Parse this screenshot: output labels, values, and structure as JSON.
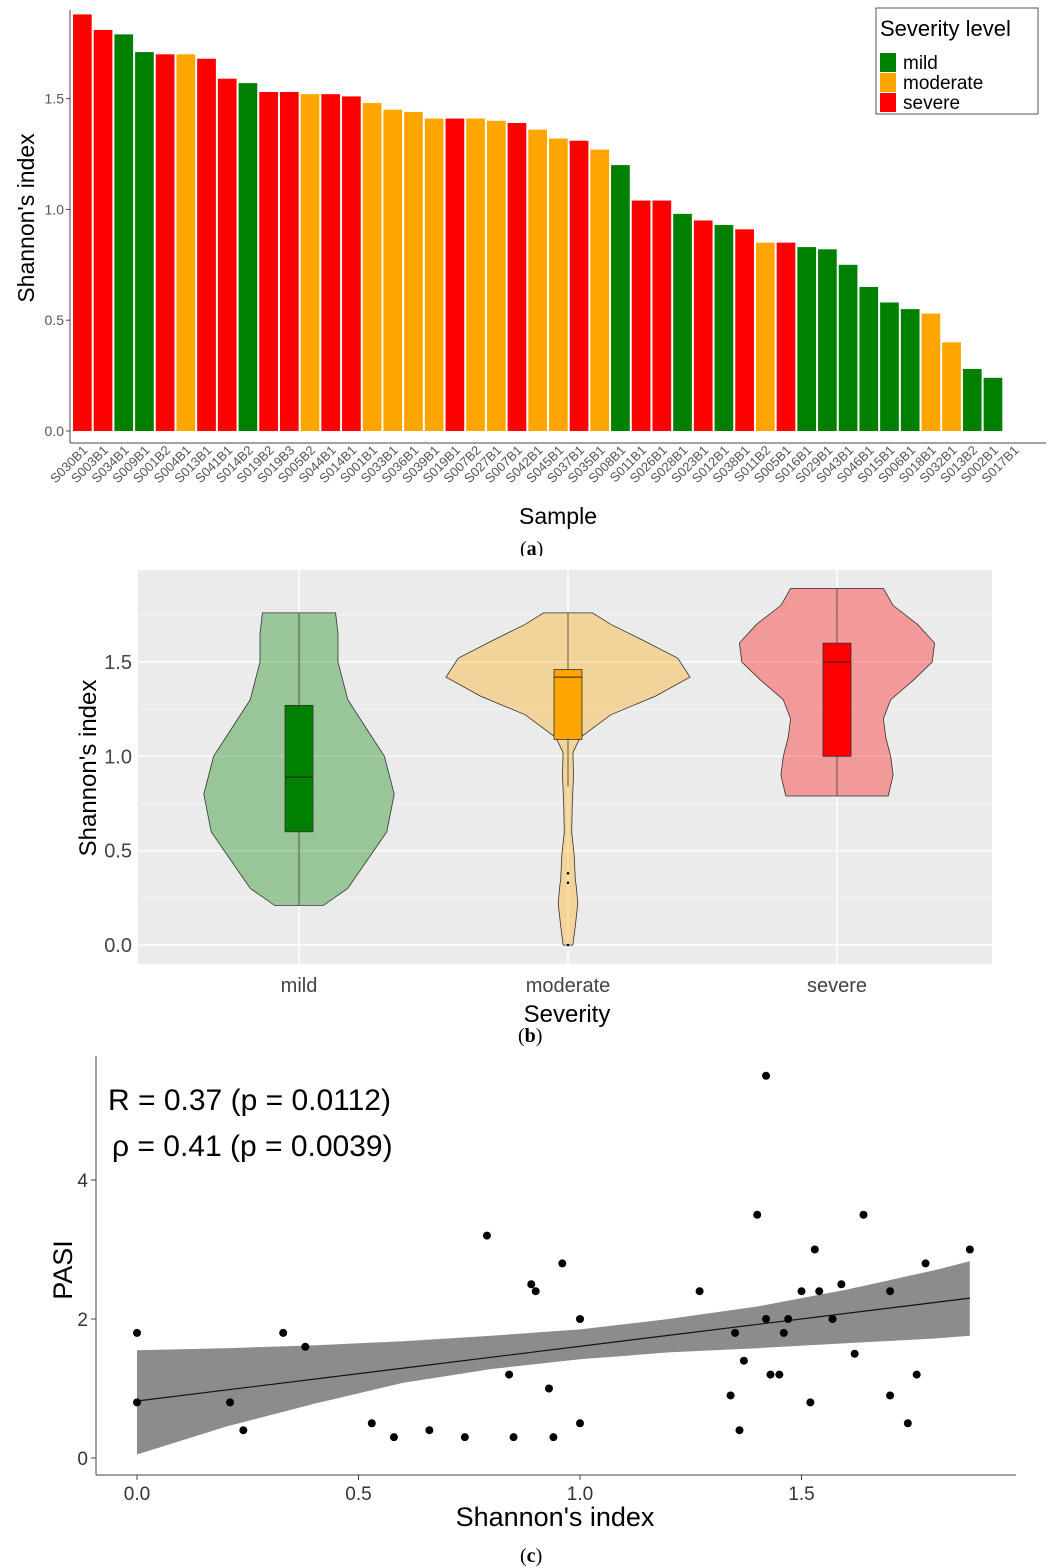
{
  "chart_data": [
    {
      "type": "bar",
      "panel_label": "a",
      "xlabel": "Sample",
      "ylabel": "Shannon's index",
      "ylim": [
        0,
        1.9
      ],
      "yticks": [
        "0.0",
        "0.5",
        "1.0",
        "1.5"
      ],
      "ytick_values": [
        0,
        0.5,
        1.0,
        1.5
      ],
      "legend": {
        "title": "Severity level",
        "position": "top-right",
        "items": [
          {
            "label": "mild",
            "color": "#008000"
          },
          {
            "label": "moderate",
            "color": "#FFA500"
          },
          {
            "label": "severe",
            "color": "#FF0000"
          }
        ]
      },
      "grid": false,
      "categories": [
        "S030B1",
        "S003B1",
        "S034B1",
        "S009B1",
        "S001B2",
        "S004B1",
        "S013B1",
        "S041B1",
        "S014B2",
        "S019B2",
        "S019B3",
        "S005B2",
        "S044B1",
        "S014B1",
        "S001B1",
        "S033B1",
        "S036B1",
        "S039B1",
        "S019B1",
        "S007B2",
        "S027B1",
        "S007B1",
        "S042B1",
        "S045B1",
        "S037B1",
        "S035B1",
        "S008B1",
        "S011B1",
        "S026B1",
        "S028B1",
        "S023B1",
        "S012B1",
        "S038B1",
        "S011B2",
        "S005B1",
        "S016B1",
        "S029B1",
        "S043B1",
        "S046B1",
        "S015B1",
        "S006B1",
        "S018B1",
        "S032B1",
        "S013B2",
        "S002B1",
        "S017B1"
      ],
      "values": [
        1.88,
        1.81,
        1.79,
        1.71,
        1.7,
        1.7,
        1.68,
        1.59,
        1.57,
        1.53,
        1.53,
        1.52,
        1.52,
        1.51,
        1.48,
        1.45,
        1.44,
        1.41,
        1.41,
        1.41,
        1.4,
        1.39,
        1.36,
        1.32,
        1.31,
        1.27,
        1.2,
        1.04,
        1.04,
        0.98,
        0.95,
        0.93,
        0.91,
        0.85,
        0.85,
        0.83,
        0.82,
        0.75,
        0.65,
        0.58,
        0.55,
        0.53,
        0.4,
        0.28,
        0.24,
        0.0
      ],
      "severity": [
        "severe",
        "severe",
        "mild",
        "mild",
        "severe",
        "moderate",
        "severe",
        "severe",
        "mild",
        "severe",
        "severe",
        "moderate",
        "severe",
        "severe",
        "moderate",
        "moderate",
        "moderate",
        "moderate",
        "severe",
        "moderate",
        "moderate",
        "severe",
        "moderate",
        "moderate",
        "severe",
        "moderate",
        "mild",
        "severe",
        "severe",
        "mild",
        "severe",
        "mild",
        "severe",
        "moderate",
        "severe",
        "mild",
        "mild",
        "mild",
        "mild",
        "mild",
        "mild",
        "moderate",
        "moderate",
        "mild",
        "mild",
        "moderate"
      ]
    },
    {
      "type": "violin",
      "panel_label": "b",
      "xlabel": "Severity",
      "ylabel": "Shannon's index",
      "categories": [
        "mild",
        "moderate",
        "severe"
      ],
      "yticks": [
        "0.0",
        "0.5",
        "1.0",
        "1.5"
      ],
      "ytick_values": [
        0,
        0.5,
        1.0,
        1.5
      ],
      "ylim": [
        -0.1,
        2.0
      ],
      "grid": true,
      "series": [
        {
          "category": "mild",
          "color": "#008000",
          "min": 0.21,
          "q1": 0.6,
          "median": 0.89,
          "q3": 1.27,
          "max": 1.76,
          "outliers": [],
          "density": [
            [
              0.21,
              0.2
            ],
            [
              0.3,
              0.4
            ],
            [
              0.45,
              0.56
            ],
            [
              0.6,
              0.72
            ],
            [
              0.8,
              0.78
            ],
            [
              1.0,
              0.7
            ],
            [
              1.15,
              0.55
            ],
            [
              1.3,
              0.4
            ],
            [
              1.5,
              0.32
            ],
            [
              1.65,
              0.32
            ],
            [
              1.76,
              0.3
            ]
          ]
        },
        {
          "category": "moderate",
          "color": "#FFA500",
          "min": 0.84,
          "q1": 1.09,
          "median": 1.42,
          "q3": 1.46,
          "max": 1.76,
          "outliers": [
            0.38,
            0.33,
            0.0
          ],
          "density": [
            [
              0.0,
              0.04
            ],
            [
              0.1,
              0.06
            ],
            [
              0.22,
              0.08
            ],
            [
              0.3,
              0.07
            ],
            [
              0.35,
              0.06
            ],
            [
              0.48,
              0.05
            ],
            [
              0.6,
              0.03
            ],
            [
              0.75,
              0.035
            ],
            [
              0.9,
              0.045
            ],
            [
              1.02,
              0.04
            ],
            [
              1.1,
              0.1
            ],
            [
              1.22,
              0.35
            ],
            [
              1.32,
              0.72
            ],
            [
              1.42,
              1.0
            ],
            [
              1.52,
              0.9
            ],
            [
              1.62,
              0.6
            ],
            [
              1.7,
              0.35
            ],
            [
              1.76,
              0.2
            ]
          ]
        },
        {
          "category": "severe",
          "color": "#FF0000",
          "min": 0.79,
          "q1": 1.0,
          "median": 1.5,
          "q3": 1.6,
          "max": 1.89,
          "outliers": [],
          "density": [
            [
              0.79,
              0.42
            ],
            [
              0.9,
              0.46
            ],
            [
              1.0,
              0.44
            ],
            [
              1.1,
              0.4
            ],
            [
              1.2,
              0.38
            ],
            [
              1.3,
              0.44
            ],
            [
              1.4,
              0.62
            ],
            [
              1.5,
              0.78
            ],
            [
              1.6,
              0.8
            ],
            [
              1.7,
              0.66
            ],
            [
              1.8,
              0.46
            ],
            [
              1.89,
              0.38
            ]
          ]
        }
      ]
    },
    {
      "type": "scatter",
      "panel_label": "c",
      "xlabel": "Shannon's index",
      "ylabel": "PASI",
      "xlim": [
        -0.05,
        1.95
      ],
      "ylim": [
        -0.1,
        5.6
      ],
      "xticks": [
        "0.0",
        "0.5",
        "1.0",
        "1.5"
      ],
      "xtick_values": [
        0,
        0.5,
        1.0,
        1.5
      ],
      "yticks": [
        "0",
        "2",
        "4"
      ],
      "ytick_values": [
        0,
        2,
        4
      ],
      "annotations": [
        "R = 0.37 (p = 0.0112)",
        "ρ = 0.41 (p = 0.0039)"
      ],
      "points": [
        [
          0.0,
          1.8
        ],
        [
          0.0,
          0.8
        ],
        [
          0.21,
          0.8
        ],
        [
          0.24,
          0.4
        ],
        [
          0.33,
          1.8
        ],
        [
          0.38,
          1.6
        ],
        [
          0.53,
          0.5
        ],
        [
          0.58,
          0.3
        ],
        [
          0.66,
          0.4
        ],
        [
          0.74,
          0.3
        ],
        [
          0.79,
          3.2
        ],
        [
          0.84,
          1.2
        ],
        [
          0.85,
          0.3
        ],
        [
          0.89,
          2.5
        ],
        [
          0.9,
          2.4
        ],
        [
          0.93,
          1.0
        ],
        [
          0.94,
          0.3
        ],
        [
          0.96,
          2.8
        ],
        [
          1.0,
          0.5
        ],
        [
          1.0,
          2.0
        ],
        [
          1.27,
          2.4
        ],
        [
          1.34,
          0.9
        ],
        [
          1.35,
          1.8
        ],
        [
          1.36,
          0.4
        ],
        [
          1.37,
          1.4
        ],
        [
          1.4,
          3.5
        ],
        [
          1.42,
          2.0
        ],
        [
          1.42,
          5.5
        ],
        [
          1.43,
          1.2
        ],
        [
          1.45,
          1.2
        ],
        [
          1.46,
          1.8
        ],
        [
          1.47,
          2.0
        ],
        [
          1.5,
          2.4
        ],
        [
          1.52,
          0.8
        ],
        [
          1.53,
          3.0
        ],
        [
          1.54,
          2.4
        ],
        [
          1.57,
          2.0
        ],
        [
          1.59,
          2.5
        ],
        [
          1.62,
          1.5
        ],
        [
          1.64,
          3.5
        ],
        [
          1.7,
          2.4
        ],
        [
          1.7,
          0.9
        ],
        [
          1.74,
          0.5
        ],
        [
          1.76,
          1.2
        ],
        [
          1.78,
          2.8
        ],
        [
          1.88,
          3.0
        ]
      ],
      "fit_line": {
        "x": [
          0.0,
          1.88
        ],
        "y": [
          0.82,
          2.3
        ]
      },
      "confidence_band": {
        "x": [
          0.0,
          0.2,
          0.4,
          0.6,
          0.8,
          1.0,
          1.2,
          1.4,
          1.6,
          1.8,
          1.88
        ],
        "lower": [
          0.05,
          0.45,
          0.78,
          1.08,
          1.28,
          1.42,
          1.52,
          1.58,
          1.65,
          1.72,
          1.76
        ],
        "upper": [
          1.55,
          1.58,
          1.62,
          1.68,
          1.76,
          1.85,
          2.0,
          2.18,
          2.42,
          2.7,
          2.83
        ]
      }
    }
  ]
}
